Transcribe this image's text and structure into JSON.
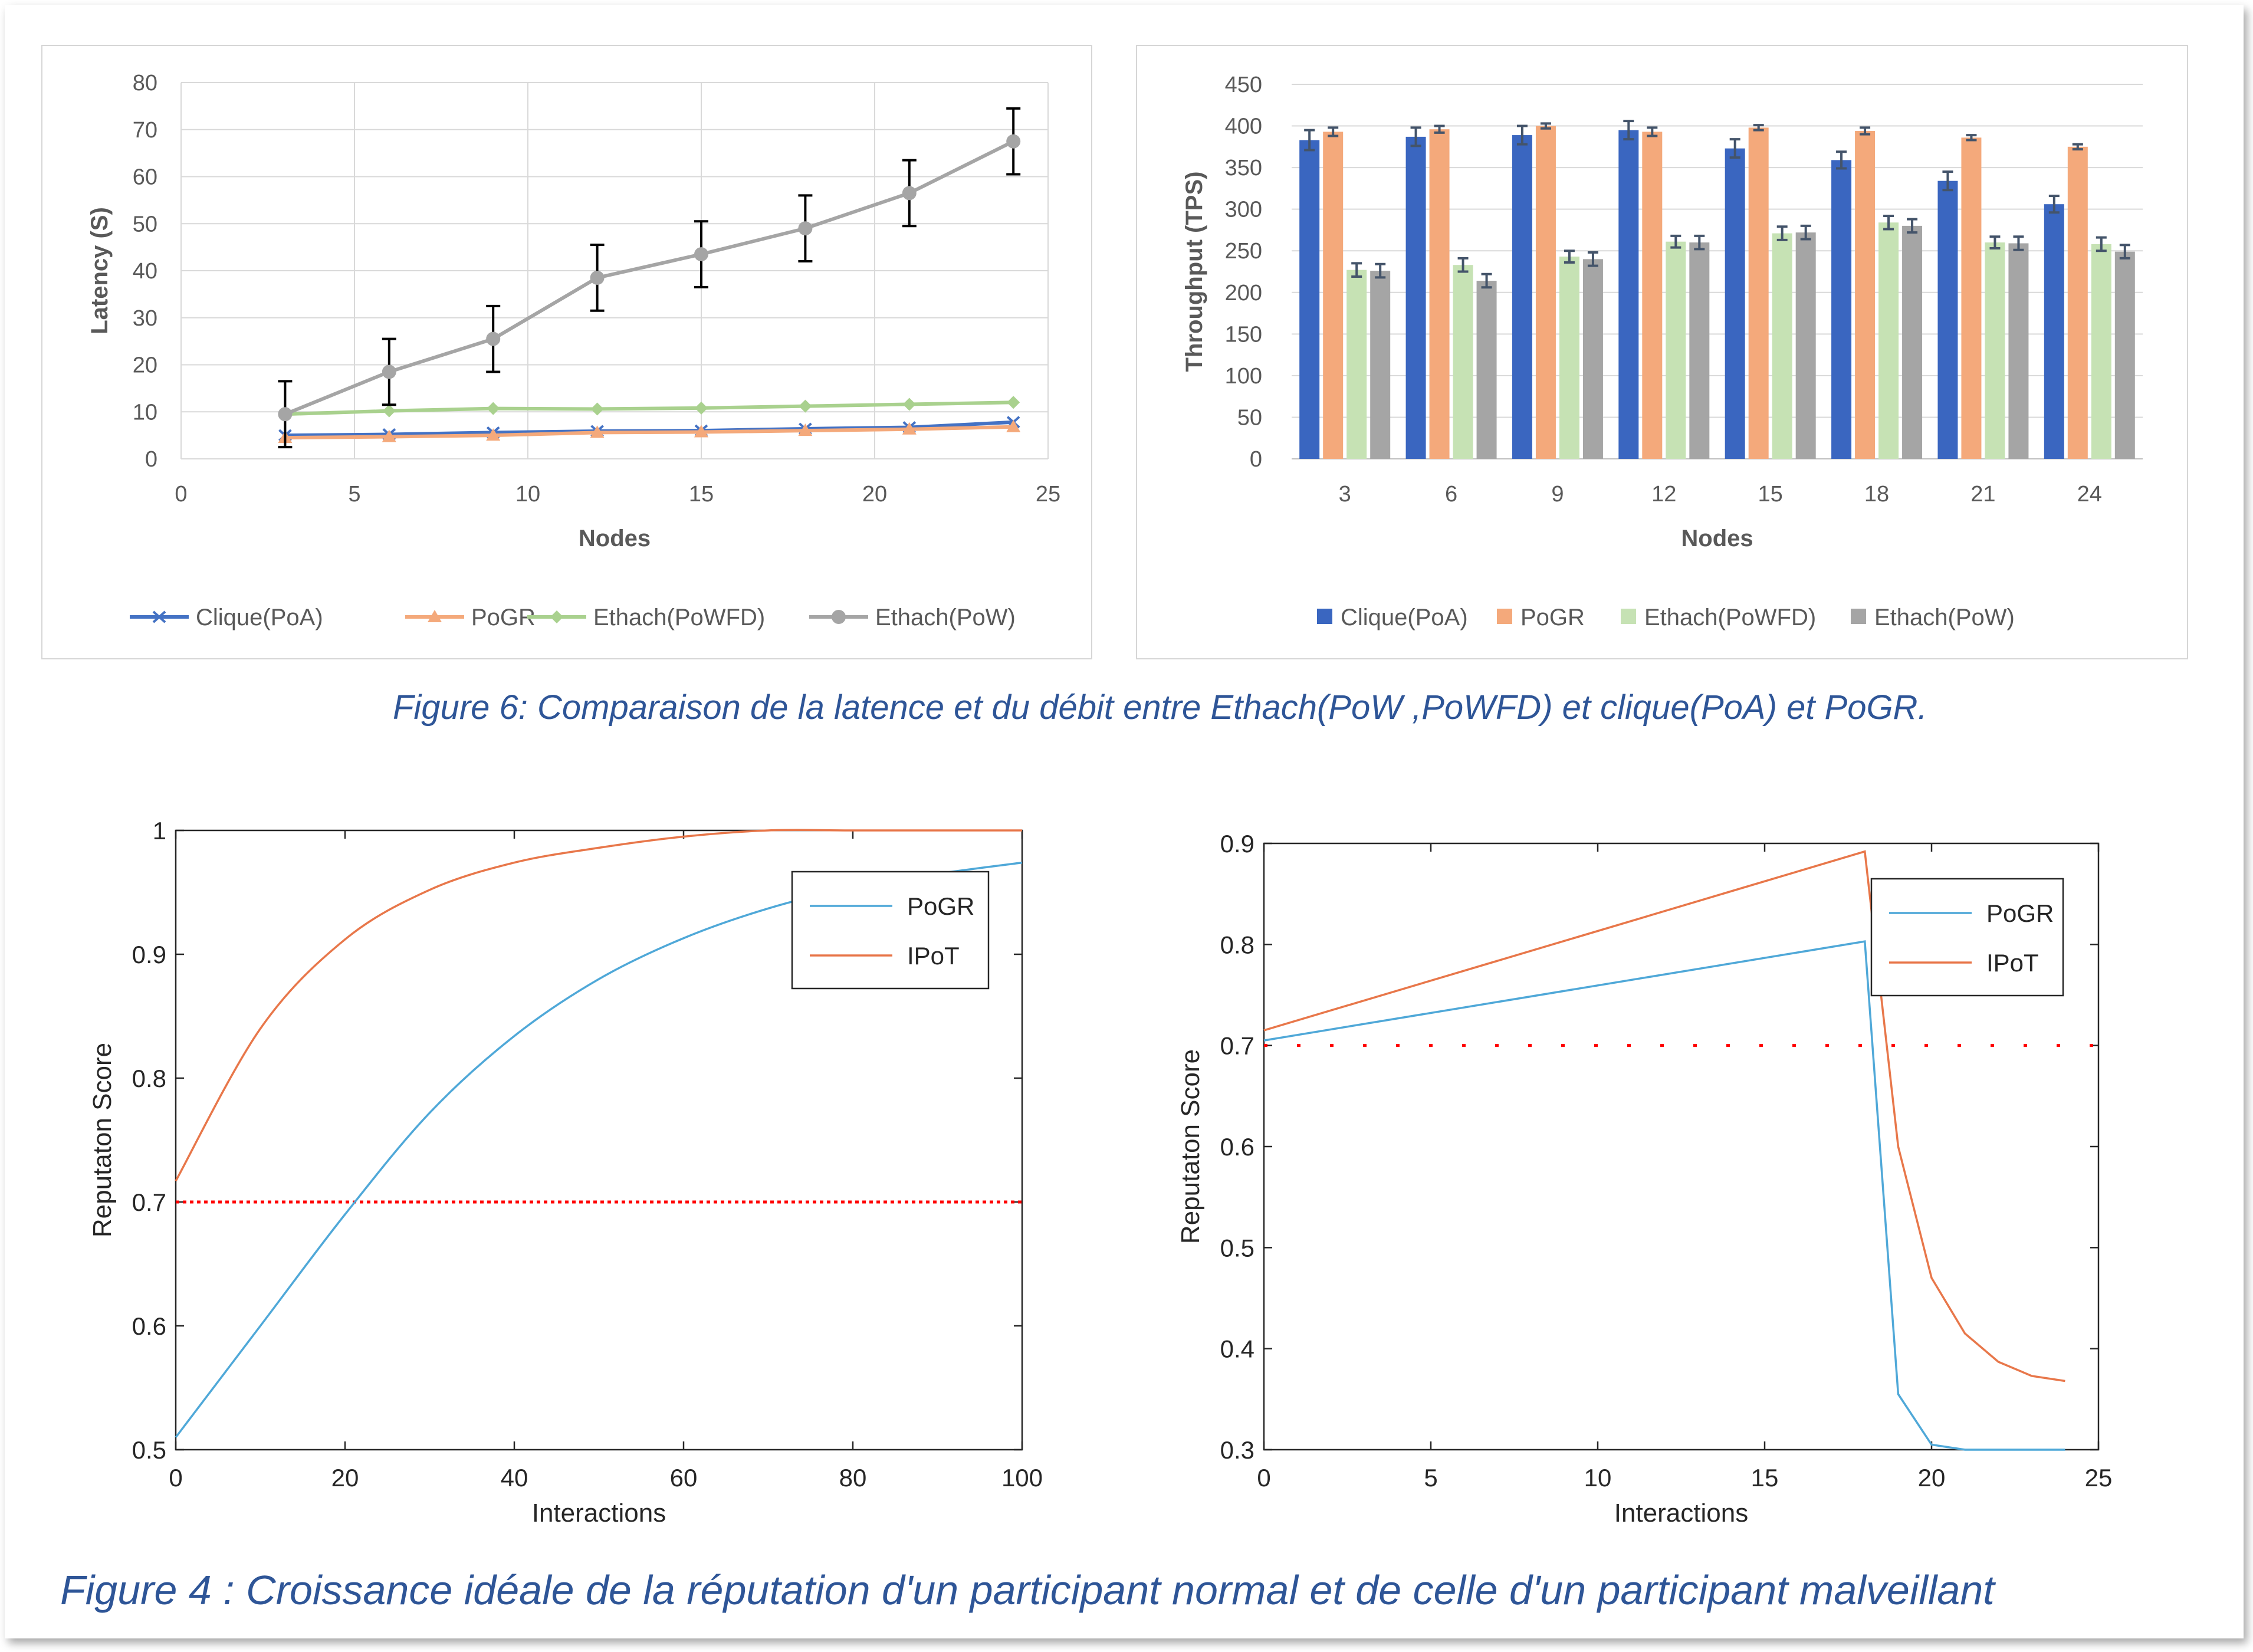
{
  "colors": {
    "accent": "#2e5597",
    "blue": "#4472c4",
    "orange": "#f4a97b",
    "green": "#a9d18e",
    "gray": "#a5a5a5",
    "matlab_blue": "#4fa8d8",
    "matlab_orange": "#e8774a",
    "threshold": "#ff0000"
  },
  "captions": {
    "fig6": "Figure 6: Comparaison de la latence et du débit entre Ethach(PoW ,PoWFD) et clique(PoA) et PoGR.",
    "fig4": "Figure 4 : Croissance idéale de la réputation d'un participant normal et de celle d'un participant malveillant"
  },
  "chart_data": [
    {
      "type": "line",
      "xlabel": "Nodes",
      "ylabel": "Latency (S)",
      "xlim": [
        0,
        25
      ],
      "ylim": [
        0,
        80
      ],
      "x_ticks": [
        "0",
        "5",
        "10",
        "15",
        "20",
        "25"
      ],
      "y_ticks": [
        "0",
        "10",
        "20",
        "30",
        "40",
        "50",
        "60",
        "70",
        "80"
      ],
      "grid": true,
      "legend_position": "bottom",
      "x": [
        3,
        6,
        9,
        12,
        15,
        18,
        21,
        24
      ],
      "series": [
        {
          "name": "Clique(PoA)",
          "values": [
            5,
            5.2,
            5.6,
            5.9,
            6.0,
            6.4,
            6.7,
            7.8
          ],
          "color": "#4472c4",
          "marker": "x"
        },
        {
          "name": "PoGR",
          "values": [
            4.5,
            4.7,
            5.0,
            5.6,
            5.7,
            6.0,
            6.3,
            6.8
          ],
          "color": "#f4a97b",
          "marker": "triangle"
        },
        {
          "name": "Ethach(PoWFD)",
          "values": [
            9.5,
            10.2,
            10.7,
            10.6,
            10.8,
            11.2,
            11.6,
            12.0
          ],
          "color": "#a9d18e",
          "marker": "diamond"
        },
        {
          "name": "Ethach(PoW)",
          "values": [
            9.5,
            18.5,
            25.5,
            38.5,
            43.5,
            49,
            56.5,
            67.5
          ],
          "error": [
            7,
            7,
            7,
            7,
            7,
            7,
            7,
            7
          ],
          "color": "#a5a5a5",
          "marker": "circle"
        }
      ]
    },
    {
      "type": "bar",
      "xlabel": "Nodes",
      "ylabel": "Throughput (TPS)",
      "ylim": [
        0,
        450
      ],
      "y_ticks": [
        "0",
        "50",
        "100",
        "150",
        "200",
        "250",
        "300",
        "350",
        "400",
        "450"
      ],
      "categories": [
        "3",
        "6",
        "9",
        "12",
        "15",
        "18",
        "21",
        "24"
      ],
      "grid": true,
      "legend_position": "bottom",
      "series": [
        {
          "name": "Clique(PoA)",
          "values": [
            383,
            387,
            389,
            395,
            373,
            359,
            334,
            306
          ],
          "error": [
            12,
            11,
            11,
            11,
            11,
            10,
            11,
            10
          ],
          "color": "#4472c4"
        },
        {
          "name": "PoGR",
          "values": [
            393,
            396,
            400,
            393,
            398,
            394,
            386,
            375
          ],
          "error": [
            5,
            4,
            3,
            5,
            3,
            4,
            3,
            3
          ],
          "color": "#f4a97b"
        },
        {
          "name": "Ethach(PoWFD)",
          "values": [
            227,
            233,
            243,
            261,
            271,
            284,
            260,
            258
          ],
          "error": [
            8,
            8,
            7,
            7,
            8,
            8,
            7,
            8
          ],
          "color": "#a9d18e"
        },
        {
          "name": "Ethach(PoW)",
          "values": [
            226,
            214,
            240,
            260,
            272,
            280,
            259,
            249
          ],
          "error": [
            8,
            8,
            8,
            8,
            8,
            8,
            8,
            8
          ],
          "color": "#a5a5a5"
        }
      ]
    },
    {
      "type": "line",
      "xlabel": "Interactions",
      "ylabel": "Reputaton Score",
      "xlim": [
        0,
        100
      ],
      "ylim": [
        0.5,
        1
      ],
      "x_ticks": [
        "0",
        "20",
        "40",
        "60",
        "80",
        "100"
      ],
      "y_ticks": [
        "0.5",
        "0.6",
        "0.7",
        "0.8",
        "0.9",
        "1"
      ],
      "threshold": 0.7,
      "legend_position": "top-right",
      "x": [
        0,
        10,
        20,
        30,
        40,
        50,
        60,
        70,
        80,
        90,
        100
      ],
      "series": [
        {
          "name": "PoGR",
          "values": [
            0.51,
            0.6,
            0.69,
            0.772,
            0.834,
            0.88,
            0.913,
            0.937,
            0.954,
            0.965,
            0.974
          ],
          "color": "#4fa8d8"
        },
        {
          "name": "IPoT",
          "values": [
            0.717,
            0.84,
            0.912,
            0.952,
            0.974,
            0.986,
            0.995,
            1.0,
            1.0,
            1.0,
            1.0
          ],
          "color": "#e8774a"
        }
      ]
    },
    {
      "type": "line",
      "xlabel": "Interactions",
      "ylabel": "Reputaton Score",
      "xlim": [
        0,
        25
      ],
      "ylim": [
        0.3,
        0.9
      ],
      "x_ticks": [
        "0",
        "5",
        "10",
        "15",
        "20",
        "25"
      ],
      "y_ticks": [
        "0.3",
        "0.4",
        "0.5",
        "0.6",
        "0.7",
        "0.8",
        "0.9"
      ],
      "threshold": 0.7,
      "legend_position": "top-right",
      "x": [
        0,
        18,
        19,
        20,
        21,
        22,
        23,
        24
      ],
      "series": [
        {
          "name": "PoGR",
          "values": [
            0.705,
            0.803,
            0.355,
            0.305,
            0.3,
            0.3,
            0.3,
            0.3
          ],
          "color": "#4fa8d8"
        },
        {
          "name": "IPoT",
          "values": [
            0.715,
            0.892,
            0.6,
            0.47,
            0.415,
            0.387,
            0.373,
            0.368
          ],
          "color": "#e8774a"
        }
      ]
    }
  ]
}
